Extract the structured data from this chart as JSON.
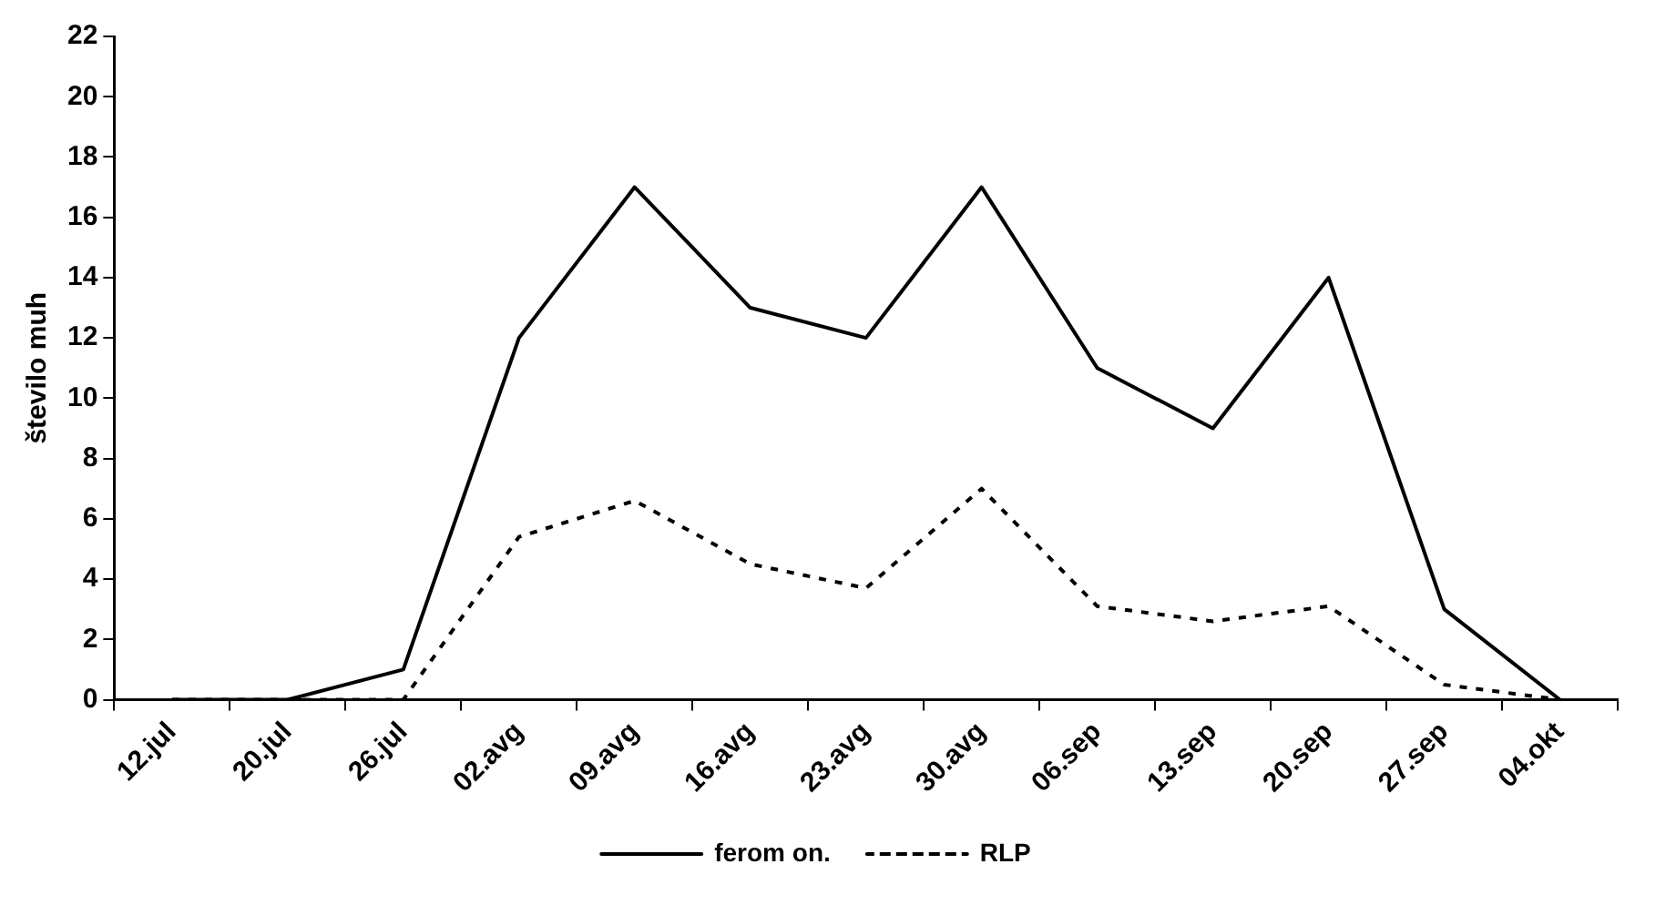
{
  "chart_data": {
    "type": "line",
    "ylabel": "število muh",
    "categories": [
      "12.jul",
      "20.jul",
      "26.jul",
      "02.avg",
      "09.avg",
      "16.avg",
      "23.avg",
      "30.avg",
      "06.sep",
      "13.sep",
      "20.sep",
      "27.sep",
      "04.okt"
    ],
    "series": [
      {
        "name": "ferom on.",
        "color": "#000000",
        "line_style": "solid",
        "values": [
          0,
          0,
          1,
          12,
          17,
          13,
          12,
          17,
          11,
          9,
          14,
          3,
          0
        ]
      },
      {
        "name": "RLP",
        "color": "#000000",
        "line_style": "dotted",
        "values": [
          0,
          0,
          0,
          5.4,
          6.6,
          4.5,
          3.7,
          7,
          3.1,
          2.6,
          3.1,
          0.5,
          0
        ]
      }
    ],
    "ylim": [
      0,
      22
    ],
    "yticks": [
      0,
      2,
      4,
      6,
      8,
      10,
      12,
      14,
      16,
      18,
      20,
      22
    ],
    "grid": false,
    "legend": "bottom",
    "marker": "none"
  }
}
